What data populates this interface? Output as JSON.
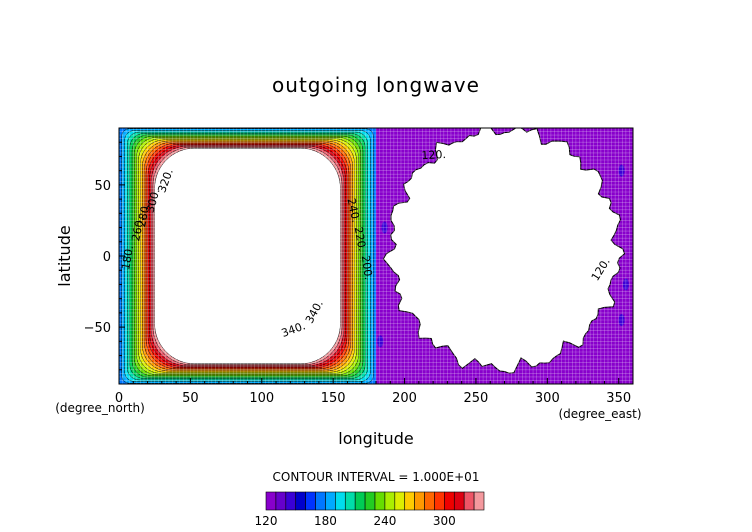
{
  "chart_data": {
    "type": "heatmap",
    "title": "outgoing longwave",
    "xlabel": "longitude",
    "ylabel": "latitude",
    "x_unit_label": "(degree_east)",
    "y_unit_label": "(degree_north)",
    "xlim": [
      0,
      360
    ],
    "ylim": [
      -90,
      90
    ],
    "x_ticks": [
      0,
      50,
      100,
      150,
      200,
      250,
      300,
      350
    ],
    "y_ticks": [
      -50,
      0,
      50
    ],
    "contour_interval_text": "CONTOUR INTERVAL = 1.000E+01",
    "contour_interval": 10,
    "levels": [
      120,
      130,
      140,
      150,
      160,
      170,
      180,
      190,
      200,
      210,
      220,
      230,
      240,
      250,
      260,
      270,
      280,
      290,
      300,
      310,
      320,
      330,
      340
    ],
    "level_colors": [
      "#8800cc",
      "#6600cc",
      "#3a00d6",
      "#0000cc",
      "#0033ff",
      "#0077ff",
      "#00aaff",
      "#00ddee",
      "#00ddaa",
      "#00cc55",
      "#22cc22",
      "#66dd00",
      "#aaee00",
      "#ddee00",
      "#ffcc00",
      "#ff9900",
      "#ff6600",
      "#ff3300",
      "#ee0000",
      "#dd0011",
      "#ee5566",
      "#f4999e",
      "#ffffff"
    ],
    "colorbar_labels": [
      120,
      180,
      240,
      300
    ],
    "contour_labels": [
      "340.",
      "340.",
      "320.",
      "300.",
      "280.",
      "260.",
      "240.",
      "220.",
      "200.",
      "180.",
      "120.",
      "120."
    ],
    "regions": {
      "warm_block": {
        "description_values": "lon 0-180 all latitudes; field rises from ~180 at edges to >340 in core",
        "lon": [
          0,
          180
        ],
        "lat": [
          -90,
          90
        ],
        "edge_value": 180,
        "core_value": 340
      },
      "cold_block": {
        "lon": [
          180,
          360
        ],
        "lat": [
          -90,
          90
        ],
        "background_value": 120,
        "circle_center_lon": 270,
        "circle_center_lat": 5,
        "circle_radius_deg": 80,
        "circle_value": "below 120"
      }
    }
  }
}
